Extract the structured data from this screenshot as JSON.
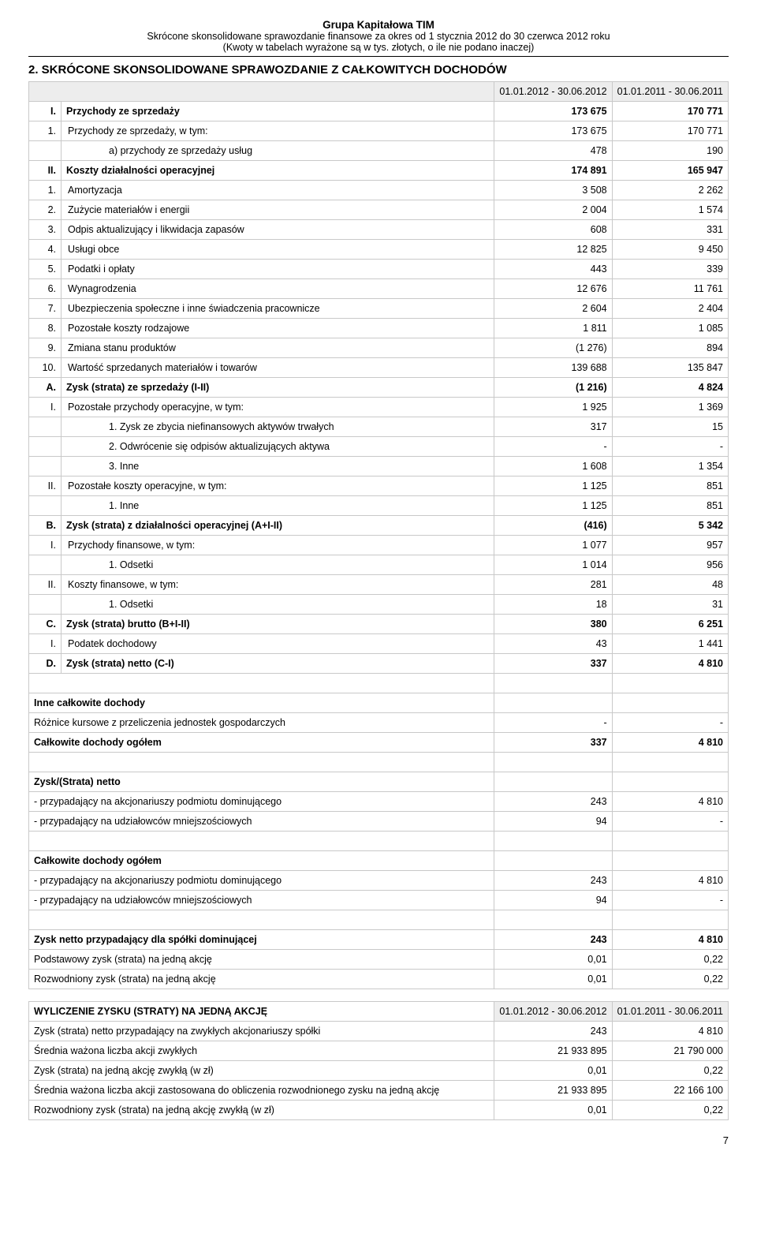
{
  "header": {
    "line1": "Grupa Kapitałowa TIM",
    "line2": "Skrócone skonsolidowane sprawozdanie finansowe za okres od 1 stycznia 2012 do 30 czerwca 2012 roku",
    "line3": "(Kwoty w tabelach wyrażone są w tys. złotych, o ile nie podano inaczej)"
  },
  "section_title": "2.  SKRÓCONE SKONSOLIDOWANE SPRAWOZDANIE Z CAŁKOWITYCH DOCHODÓW",
  "columns": {
    "c1": "01.01.2012 - 30.06.2012",
    "c2": "01.01.2011 - 30.06.2011"
  },
  "rows": [
    {
      "idx": "I.",
      "label": "Przychody ze sprzedaży",
      "v1": "173 675",
      "v2": "170 771",
      "bold": true
    },
    {
      "idx": "1.",
      "label": "Przychody ze sprzedaży, w tym:",
      "v1": "173 675",
      "v2": "170 771",
      "indent": 1
    },
    {
      "idx": "",
      "label": "a) przychody ze sprzedaży usług",
      "v1": "478",
      "v2": "190",
      "indent": 2
    },
    {
      "idx": "II.",
      "label": "Koszty działalności operacyjnej",
      "v1": "174 891",
      "v2": "165 947",
      "bold": true
    },
    {
      "idx": "1.",
      "label": "Amortyzacja",
      "v1": "3 508",
      "v2": "2 262",
      "indent": 1
    },
    {
      "idx": "2.",
      "label": "Zużycie materiałów i energii",
      "v1": "2 004",
      "v2": "1 574",
      "indent": 1
    },
    {
      "idx": "3.",
      "label": "Odpis aktualizujący i likwidacja zapasów",
      "v1": "608",
      "v2": "331",
      "indent": 1
    },
    {
      "idx": "4.",
      "label": "Usługi obce",
      "v1": "12 825",
      "v2": "9 450",
      "indent": 1
    },
    {
      "idx": "5.",
      "label": "Podatki i opłaty",
      "v1": "443",
      "v2": "339",
      "indent": 1
    },
    {
      "idx": "6.",
      "label": "Wynagrodzenia",
      "v1": "12 676",
      "v2": "11 761",
      "indent": 1
    },
    {
      "idx": "7.",
      "label": "Ubezpieczenia społeczne i inne świadczenia pracownicze",
      "v1": "2 604",
      "v2": "2 404",
      "indent": 1
    },
    {
      "idx": "8.",
      "label": "Pozostałe koszty rodzajowe",
      "v1": "1 811",
      "v2": "1 085",
      "indent": 1
    },
    {
      "idx": "9.",
      "label": "Zmiana stanu produktów",
      "v1": "(1 276)",
      "v2": "894",
      "indent": 1
    },
    {
      "idx": "10.",
      "label": "Wartość sprzedanych materiałów i towarów",
      "v1": "139 688",
      "v2": "135 847",
      "indent": 1
    },
    {
      "idx": "A.",
      "label": "Zysk (strata) ze sprzedaży (I-II)",
      "v1": "(1 216)",
      "v2": "4 824",
      "bold": true
    },
    {
      "idx": "I.",
      "label": "Pozostałe przychody operacyjne, w tym:",
      "v1": "1 925",
      "v2": "1 369",
      "indent": 1
    },
    {
      "idx": "",
      "label": "1. Zysk ze zbycia niefinansowych aktywów  trwałych",
      "v1": "317",
      "v2": "15",
      "indent": 2
    },
    {
      "idx": "",
      "label": "2. Odwrócenie się odpisów aktualizujących aktywa",
      "v1": "-",
      "v2": "-",
      "indent": 2
    },
    {
      "idx": "",
      "label": "3. Inne",
      "v1": "1 608",
      "v2": "1 354",
      "indent": 2
    },
    {
      "idx": "II.",
      "label": "Pozostałe koszty operacyjne, w tym:",
      "v1": "1 125",
      "v2": "851",
      "indent": 1
    },
    {
      "idx": "",
      "label": "1. Inne",
      "v1": "1 125",
      "v2": "851",
      "indent": 2
    },
    {
      "idx": "B.",
      "label": "Zysk (strata) z działalności operacyjnej (A+I-II)",
      "v1": "(416)",
      "v2": "5 342",
      "bold": true
    },
    {
      "idx": "I.",
      "label": "Przychody finansowe, w tym:",
      "v1": "1 077",
      "v2": "957",
      "indent": 1
    },
    {
      "idx": "",
      "label": "1. Odsetki",
      "v1": "1 014",
      "v2": "956",
      "indent": 2
    },
    {
      "idx": "II.",
      "label": "Koszty finansowe, w tym:",
      "v1": "281",
      "v2": "48",
      "indent": 1
    },
    {
      "idx": "",
      "label": "1. Odsetki",
      "v1": "18",
      "v2": "31",
      "indent": 2
    },
    {
      "idx": "C.",
      "label": "Zysk (strata) brutto (B+I-II)",
      "v1": "380",
      "v2": "6 251",
      "bold": true
    },
    {
      "idx": "I.",
      "label": "Podatek dochodowy",
      "v1": "43",
      "v2": "1 441",
      "indent": 1
    },
    {
      "idx": "D.",
      "label": "Zysk (strata) netto (C-I)",
      "v1": "337",
      "v2": "4 810",
      "bold": true
    }
  ],
  "section2": [
    {
      "label": "Inne całkowite dochody",
      "v1": "",
      "v2": "",
      "bold": true,
      "spacer_before": true
    },
    {
      "label": "Różnice kursowe z przeliczenia jednostek gospodarczych",
      "v1": "-",
      "v2": "-"
    },
    {
      "label": "Całkowite dochody ogółem",
      "v1": "337",
      "v2": "4 810",
      "bold": true
    },
    {
      "label": "Zysk/(Strata) netto",
      "v1": "",
      "v2": "",
      "bold": true,
      "spacer_before": true
    },
    {
      "label": "- przypadający na akcjonariuszy podmiotu dominującego",
      "v1": "243",
      "v2": "4 810"
    },
    {
      "label": "- przypadający na udziałowców mniejszościowych",
      "v1": "94",
      "v2": "-"
    },
    {
      "label": "Całkowite dochody ogółem",
      "v1": "",
      "v2": "",
      "bold": true,
      "spacer_before": true
    },
    {
      "label": "- przypadający na akcjonariuszy podmiotu dominującego",
      "v1": "243",
      "v2": "4 810"
    },
    {
      "label": "- przypadający na udziałowców mniejszościowych",
      "v1": "94",
      "v2": "-"
    },
    {
      "label": "Zysk netto przypadający dla spółki dominującej",
      "v1": "243",
      "v2": "4 810",
      "bold": true,
      "spacer_before": true
    },
    {
      "label": "Podstawowy zysk (strata) na jedną akcję",
      "v1": "0,01",
      "v2": "0,22"
    },
    {
      "label": "Rozwodniony zysk (strata) na jedną akcję",
      "v1": "0,01",
      "v2": "0,22"
    }
  ],
  "eps": {
    "title": "WYLICZENIE ZYSKU (STRATY) NA JEDNĄ AKCJĘ",
    "col1": "01.01.2012 - 30.06.2012",
    "col2": "01.01.2011 - 30.06.2011",
    "rows": [
      {
        "label": "Zysk (strata) netto przypadający na zwykłych akcjonariuszy spółki",
        "v1": "243",
        "v2": "4 810"
      },
      {
        "label": "Średnia ważona liczba akcji zwykłych",
        "v1": "21 933 895",
        "v2": "21 790 000"
      },
      {
        "label": "Zysk (strata) na jedną akcję zwykłą (w zł)",
        "v1": "0,01",
        "v2": "0,22"
      },
      {
        "label": "Średnia ważona liczba akcji zastosowana do obliczenia rozwodnionego zysku na jedną akcję",
        "v1": "21 933 895",
        "v2": "22 166 100"
      },
      {
        "label": "Rozwodniony zysk (strata) na jedną akcję zwykłą (w zł)",
        "v1": "0,01",
        "v2": "0,22"
      }
    ]
  },
  "page_number": "7"
}
